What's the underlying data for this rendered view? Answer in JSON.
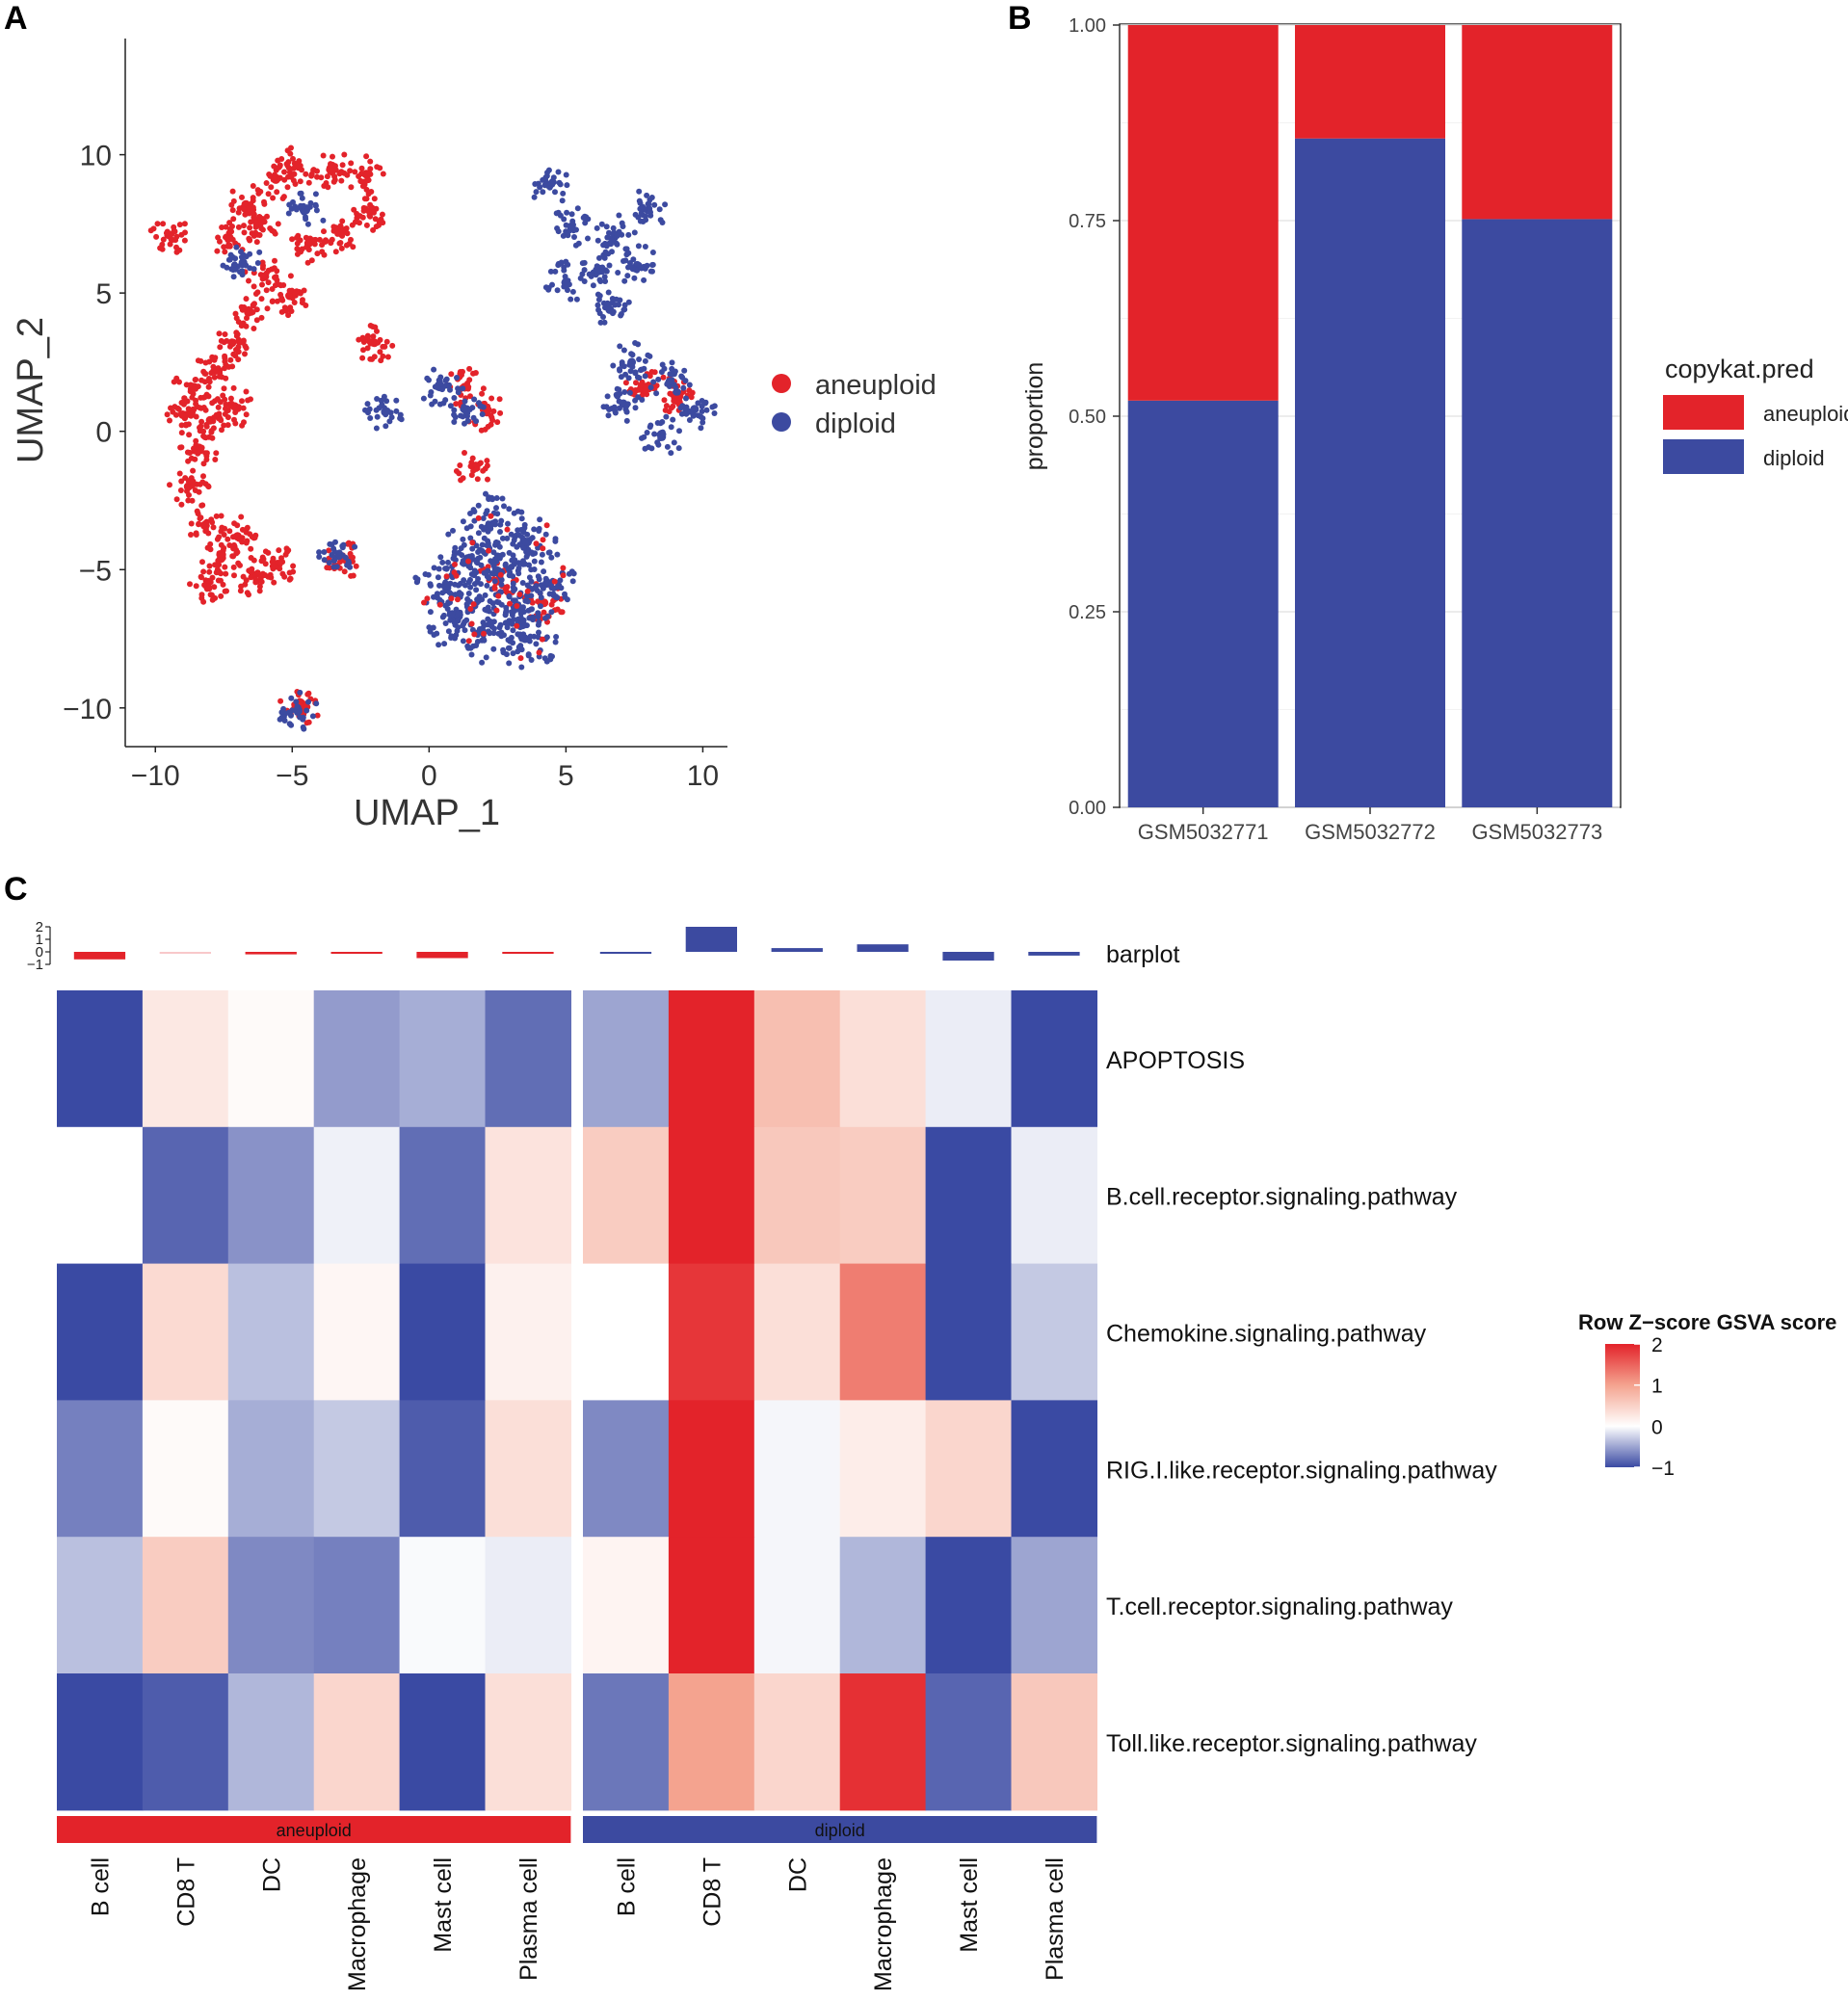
{
  "panel_letters": {
    "a": "A",
    "b": "B",
    "c": "C"
  },
  "colors": {
    "aneuploid": "#e3232a",
    "diploid": "#3c4aa0"
  },
  "chart_data": [
    {
      "panel": "A",
      "type": "scatter",
      "xlabel": "UMAP_1",
      "ylabel": "UMAP_2",
      "xlim": [
        -11.1,
        10.9
      ],
      "ylim": [
        -11.4,
        14.2
      ],
      "xticks": [
        -10,
        -5,
        0,
        5,
        10
      ],
      "yticks": [
        -10,
        -5,
        0,
        5,
        10
      ],
      "xtick_labels": [
        "−10",
        "−5",
        "0",
        "5",
        "10"
      ],
      "ytick_labels": [
        "−10",
        "−5",
        "0",
        "5",
        "10"
      ],
      "legend": {
        "placement": "right",
        "entries": [
          "aneuploid",
          "diploid"
        ]
      },
      "clusters": [
        {
          "label": "aneuploid",
          "points": [
            [
              -6.2,
              7.5
            ],
            [
              -6.7,
              8.2
            ],
            [
              -7.3,
              7.0
            ],
            [
              -5.6,
              9.1
            ],
            [
              -4.8,
              9.6
            ],
            [
              -3.6,
              9.5
            ],
            [
              -2.3,
              9.3
            ],
            [
              -2.1,
              8.0
            ],
            [
              -3.2,
              7.2
            ],
            [
              -4.4,
              6.8
            ],
            [
              -6.0,
              5.6
            ],
            [
              -5.1,
              4.9
            ],
            [
              -6.6,
              4.3
            ],
            [
              -7.2,
              3.2
            ],
            [
              -7.8,
              2.2
            ],
            [
              -8.6,
              1.6
            ],
            [
              -8.0,
              0.4
            ],
            [
              -9.0,
              0.6
            ],
            [
              -7.1,
              0.9
            ],
            [
              -8.4,
              -0.6
            ],
            [
              -8.8,
              -2.0
            ],
            [
              -8.2,
              -3.4
            ],
            [
              -7.6,
              -4.6
            ],
            [
              -8.1,
              -5.6
            ],
            [
              -6.4,
              -5.2
            ],
            [
              -5.5,
              -4.8
            ],
            [
              -7.0,
              -3.8
            ],
            [
              -9.5,
              7.1
            ],
            [
              -2.0,
              3.2
            ],
            [
              1.3,
              1.6
            ],
            [
              2.1,
              0.7
            ],
            [
              1.7,
              -1.3
            ],
            [
              -3.1,
              -4.6
            ],
            [
              -4.7,
              -9.9
            ],
            [
              7.9,
              1.6
            ],
            [
              9.0,
              1.2
            ],
            [
              4.2,
              -6.2
            ],
            [
              2.5,
              -5.4
            ]
          ]
        },
        {
          "label": "diploid",
          "points": [
            [
              2.6,
              -5.1
            ],
            [
              1.4,
              -4.6
            ],
            [
              3.2,
              -6.3
            ],
            [
              1.9,
              -7.2
            ],
            [
              3.6,
              -4.0
            ],
            [
              0.6,
              -5.6
            ],
            [
              2.2,
              -3.4
            ],
            [
              4.3,
              -5.5
            ],
            [
              3.5,
              -7.5
            ],
            [
              1.0,
              -6.8
            ],
            [
              5.2,
              7.4
            ],
            [
              6.8,
              7.1
            ],
            [
              6.2,
              5.8
            ],
            [
              8.0,
              8.0
            ],
            [
              7.6,
              6.0
            ],
            [
              5.0,
              5.4
            ],
            [
              6.6,
              4.4
            ],
            [
              4.4,
              8.9
            ],
            [
              7.4,
              2.5
            ],
            [
              8.8,
              1.8
            ],
            [
              9.7,
              0.8
            ],
            [
              7.1,
              1.0
            ],
            [
              8.5,
              -0.2
            ],
            [
              1.3,
              0.8
            ],
            [
              0.4,
              1.6
            ],
            [
              -1.6,
              0.7
            ],
            [
              -3.3,
              -4.5
            ],
            [
              -4.8,
              -10.1
            ],
            [
              -4.5,
              8.0
            ],
            [
              -6.8,
              6.1
            ]
          ]
        }
      ]
    },
    {
      "panel": "B",
      "type": "bar",
      "stacked": true,
      "categories": [
        "GSM5032771",
        "GSM5032772",
        "GSM5032773"
      ],
      "series": [
        {
          "name": "diploid",
          "values": [
            0.52,
            0.855,
            0.752
          ]
        },
        {
          "name": "aneuploid",
          "values": [
            0.48,
            0.145,
            0.248
          ]
        }
      ],
      "ylabel": "proportion",
      "ylim": [
        0,
        1
      ],
      "yticks": [
        0,
        0.25,
        0.5,
        0.75,
        1
      ],
      "ytick_labels": [
        "0.00",
        "0.25",
        "0.50",
        "0.75",
        "1.00"
      ],
      "legend_title": "copykat.pred",
      "legend_entries": [
        "aneuploid",
        "diploid"
      ],
      "legend_placement": "right"
    },
    {
      "panel": "C",
      "type": "heatmap",
      "columns": [
        "B cell",
        "CD8 T",
        "DC",
        "Macrophage",
        "Mast cell",
        "Plasma cell",
        "B cell",
        "CD8 T",
        "DC",
        "Macrophage",
        "Mast cell",
        "Plasma cell"
      ],
      "groups": [
        {
          "label": "aneuploid",
          "count": 6
        },
        {
          "label": "diploid",
          "count": 6
        }
      ],
      "rows": [
        "APOPTOSIS",
        "B.cell.receptor.signaling.pathway",
        "Chemokine.signaling.pathway",
        "RIG.I.like.receptor.signaling.pathway",
        "T.cell.receptor.signaling.pathway",
        "Toll.like.receptor.signaling.pathway"
      ],
      "values": [
        [
          -1.0,
          0.25,
          0.05,
          -0.55,
          -0.45,
          -0.8,
          -0.5,
          2.2,
          0.7,
          0.35,
          -0.1,
          -1.0
        ],
        [
          0.0,
          -0.85,
          -0.6,
          -0.08,
          -0.8,
          0.3,
          0.55,
          2.0,
          0.6,
          0.55,
          -1.0,
          -0.1
        ],
        [
          -1.0,
          0.4,
          -0.35,
          0.1,
          -1.0,
          0.15,
          0.0,
          1.85,
          0.35,
          1.3,
          -1.0,
          -0.3
        ],
        [
          -0.7,
          0.05,
          -0.45,
          -0.3,
          -0.9,
          0.35,
          -0.65,
          2.2,
          -0.05,
          0.2,
          0.45,
          -1.0
        ],
        [
          -0.35,
          0.55,
          -0.65,
          -0.7,
          -0.03,
          -0.1,
          0.12,
          2.2,
          -0.05,
          -0.4,
          -1.0,
          -0.5
        ],
        [
          -1.0,
          -0.9,
          -0.4,
          0.45,
          -1.0,
          0.35,
          -0.75,
          1.0,
          0.45,
          1.9,
          -0.85,
          0.6
        ]
      ],
      "barplot": {
        "label": "barplot",
        "values": [
          -0.6,
          0.0,
          -0.2,
          -0.15,
          -0.5,
          -0.1,
          -0.1,
          2.0,
          0.3,
          0.6,
          -0.7,
          -0.3
        ],
        "ylim": [
          -1,
          2
        ],
        "ticks": [
          "2",
          "1",
          "0",
          "−1"
        ]
      },
      "legend_title": "Row Z−score GSVA score",
      "legend_ticks": [
        "2",
        "1",
        "0",
        "−1"
      ],
      "legend_range": [
        -1,
        2
      ]
    }
  ]
}
